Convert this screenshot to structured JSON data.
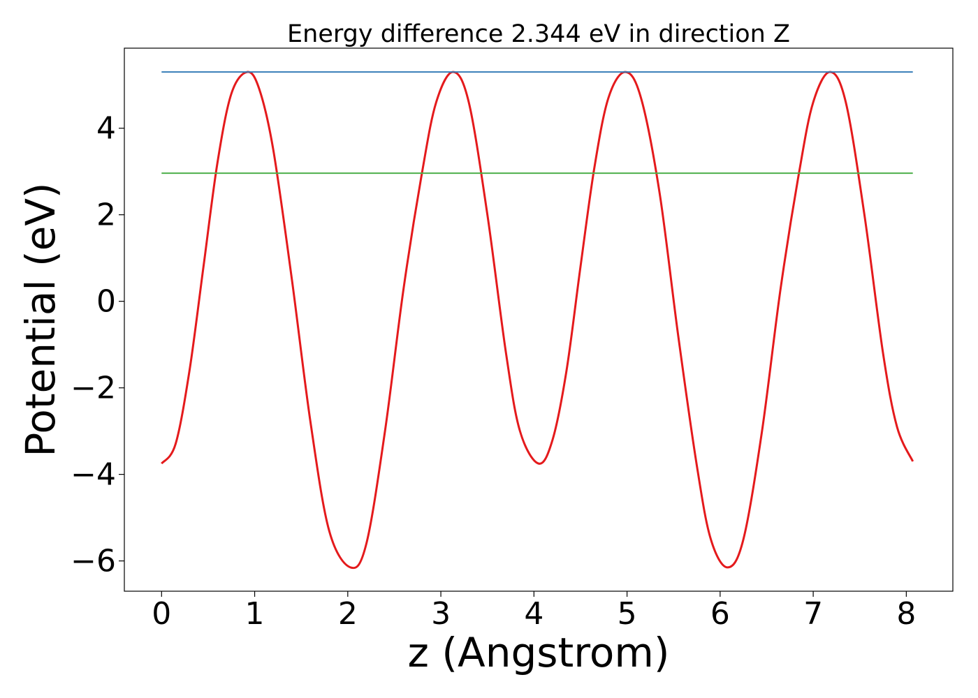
{
  "chart_data": {
    "type": "line",
    "title": "Energy difference 2.344 eV in direction Z",
    "xlabel": "z (Angstrom)",
    "ylabel": "Potential (eV)",
    "xlim": [
      -0.4,
      8.5
    ],
    "ylim": [
      -6.7,
      5.85
    ],
    "xticks": [
      0,
      1,
      2,
      3,
      4,
      5,
      6,
      7,
      8
    ],
    "yticks": [
      -6,
      -4,
      -2,
      0,
      2,
      4
    ],
    "ytick_labels": [
      "−6",
      "−4",
      "−2",
      "0",
      "2",
      "4"
    ],
    "grid": false,
    "legend": "none",
    "series": [
      {
        "color": "#e41a1c",
        "points": [
          [
            0.0,
            -3.75
          ],
          [
            0.15,
            -3.3
          ],
          [
            0.3,
            -1.6
          ],
          [
            0.45,
            0.8
          ],
          [
            0.6,
            3.2
          ],
          [
            0.75,
            4.8
          ],
          [
            0.92,
            5.3
          ],
          [
            1.05,
            4.9
          ],
          [
            1.2,
            3.5
          ],
          [
            1.4,
            0.5
          ],
          [
            1.6,
            -2.8
          ],
          [
            1.8,
            -5.3
          ],
          [
            2.03,
            -6.15
          ],
          [
            2.2,
            -5.6
          ],
          [
            2.4,
            -3.0
          ],
          [
            2.6,
            0.3
          ],
          [
            2.8,
            3.0
          ],
          [
            2.95,
            4.6
          ],
          [
            3.13,
            5.3
          ],
          [
            3.3,
            4.6
          ],
          [
            3.5,
            2.0
          ],
          [
            3.7,
            -1.2
          ],
          [
            3.85,
            -3.0
          ],
          [
            4.05,
            -3.75
          ],
          [
            4.2,
            -3.2
          ],
          [
            4.35,
            -1.6
          ],
          [
            4.5,
            0.8
          ],
          [
            4.65,
            3.1
          ],
          [
            4.8,
            4.7
          ],
          [
            4.98,
            5.3
          ],
          [
            5.15,
            4.7
          ],
          [
            5.35,
            2.5
          ],
          [
            5.55,
            -0.8
          ],
          [
            5.75,
            -3.8
          ],
          [
            5.9,
            -5.5
          ],
          [
            6.08,
            -6.15
          ],
          [
            6.25,
            -5.5
          ],
          [
            6.45,
            -3.0
          ],
          [
            6.65,
            0.3
          ],
          [
            6.85,
            3.0
          ],
          [
            7.0,
            4.6
          ],
          [
            7.18,
            5.3
          ],
          [
            7.35,
            4.6
          ],
          [
            7.55,
            2.0
          ],
          [
            7.75,
            -1.2
          ],
          [
            7.9,
            -2.9
          ],
          [
            8.07,
            -3.7
          ]
        ]
      },
      {
        "color": "#377eb8",
        "points": [
          [
            0.0,
            5.3
          ],
          [
            8.07,
            5.3
          ]
        ]
      },
      {
        "color": "#4daf4a",
        "points": [
          [
            0.0,
            2.96
          ],
          [
            8.07,
            2.96
          ]
        ]
      }
    ]
  }
}
